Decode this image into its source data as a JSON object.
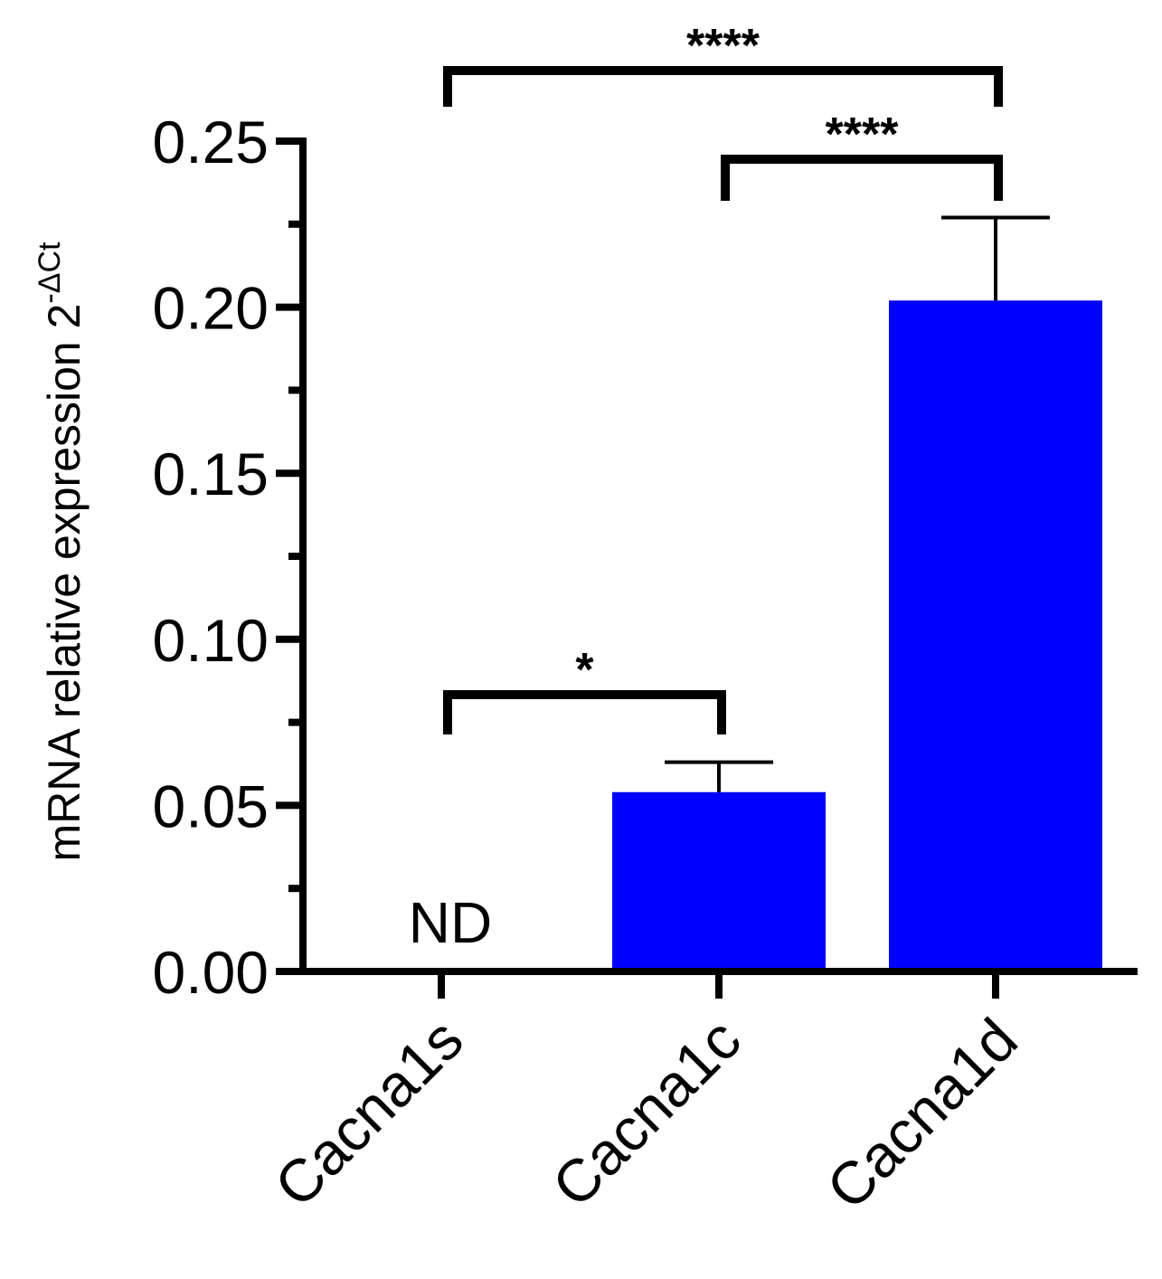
{
  "chart_data": {
    "type": "bar",
    "title": "",
    "xlabel": "",
    "ylabel": "mRNA relative expression 2",
    "ylabel_superscript": "-ΔCt",
    "categories": [
      "Cacna1s",
      "Cacna1c",
      "Cacna1d"
    ],
    "values": [
      0.0,
      0.054,
      0.202
    ],
    "errors": [
      0.0,
      0.009,
      0.025
    ],
    "value_labels": [
      "ND",
      "",
      ""
    ],
    "ylim": [
      0.0,
      0.25
    ],
    "yticks": [
      "0.00",
      "0.05",
      "0.10",
      "0.15",
      "0.20",
      "0.25"
    ],
    "bar_color": "#0000ff",
    "grid": false,
    "significance": [
      {
        "from": 0,
        "to": 2,
        "label": "****"
      },
      {
        "from": 1,
        "to": 2,
        "label": "****"
      },
      {
        "from": 0,
        "to": 1,
        "label": "*"
      }
    ]
  }
}
